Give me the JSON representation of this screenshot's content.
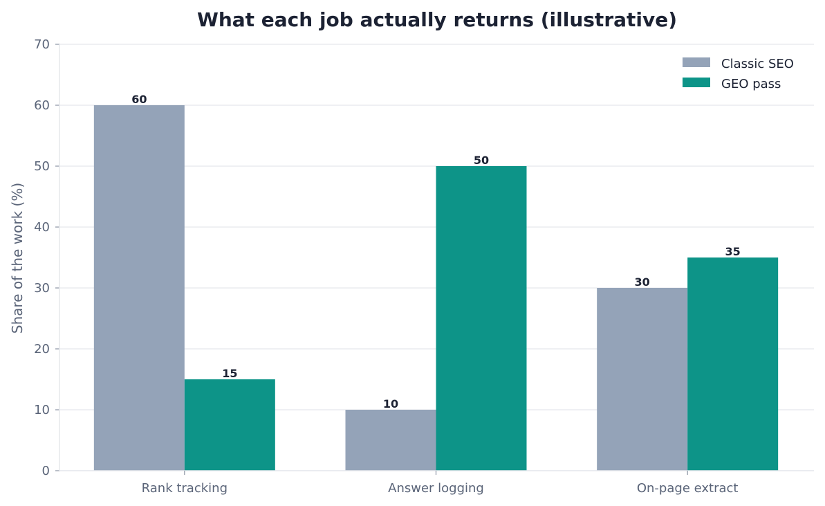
{
  "chart_data": {
    "type": "bar",
    "title": "What each job actually returns (illustrative)",
    "xlabel": "",
    "ylabel": "Share of the work (%)",
    "categories": [
      "Rank tracking",
      "Answer logging",
      "On-page extract"
    ],
    "series": [
      {
        "name": "Classic SEO",
        "values": [
          60,
          10,
          30
        ],
        "color": "#94a3b8"
      },
      {
        "name": "GEO pass",
        "values": [
          15,
          50,
          35
        ],
        "color": "#0d9488"
      }
    ],
    "ylim": [
      0,
      70
    ],
    "yticks": [
      0,
      10,
      20,
      30,
      40,
      50,
      60,
      70
    ],
    "grid": true,
    "legend_position": "top-right",
    "data_labels": true
  }
}
